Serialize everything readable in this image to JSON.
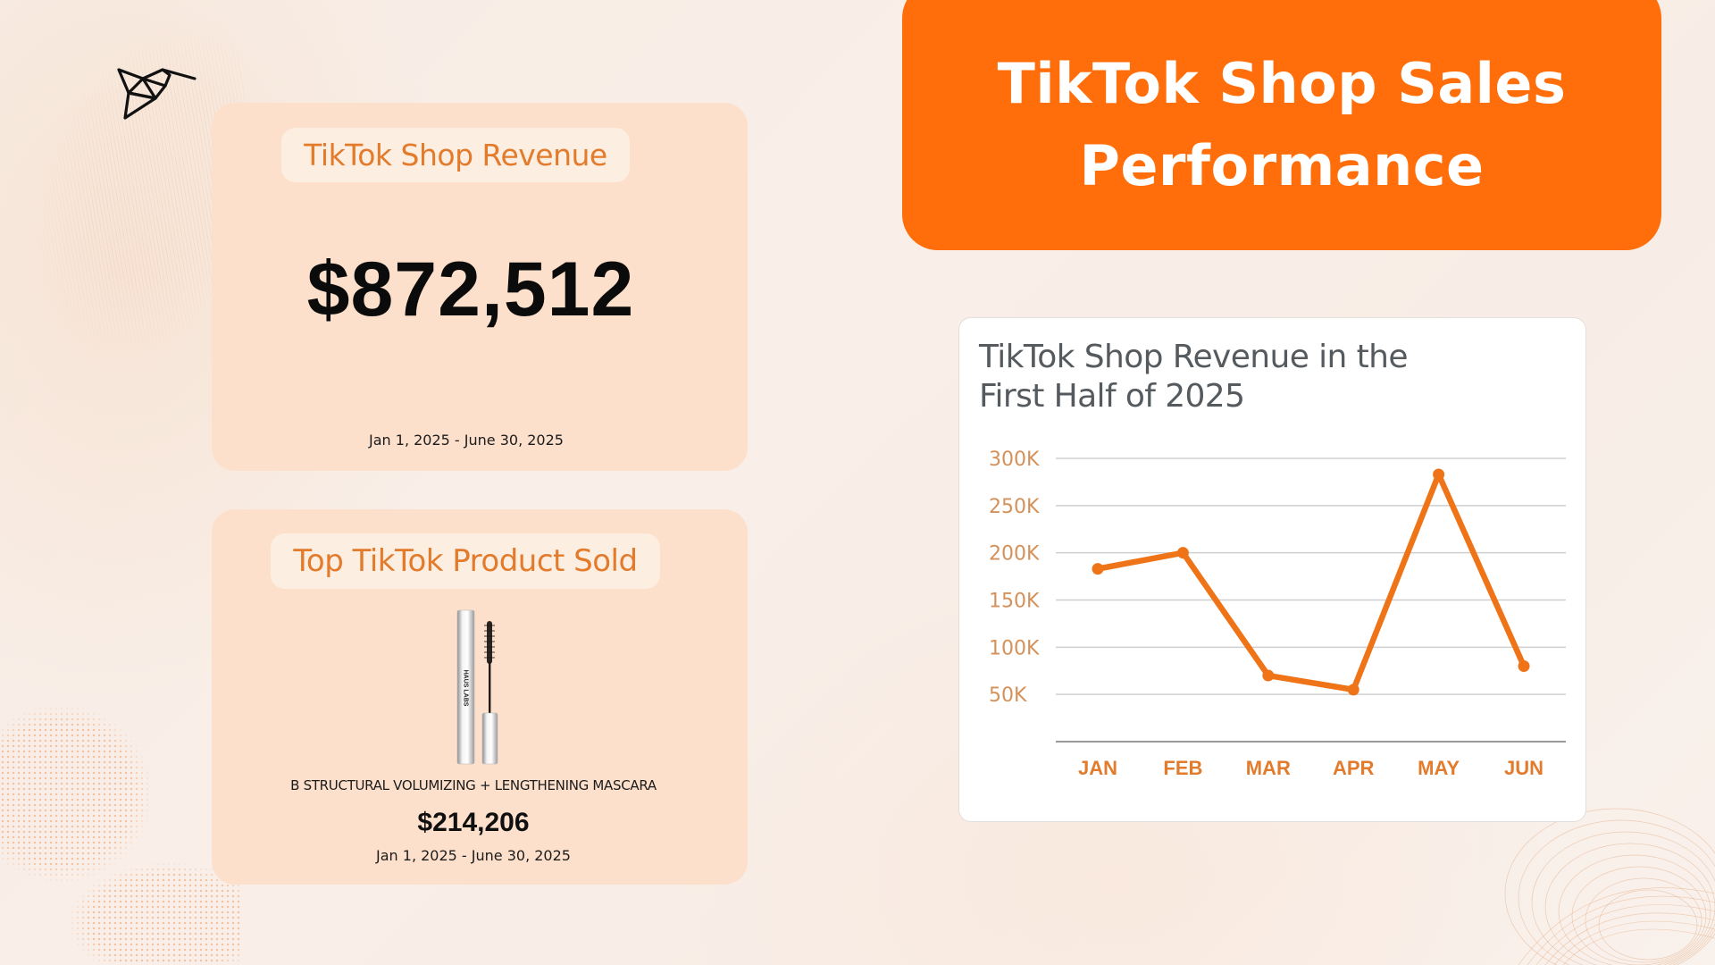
{
  "header": {
    "title_line1": "TikTok Shop Sales",
    "title_line2": "Performance"
  },
  "revenue_card": {
    "label": "TikTok Shop Revenue",
    "value": "$872,512",
    "date_range": "Jan 1, 2025 - June 30, 2025"
  },
  "product_card": {
    "label": "Top TikTok Product Sold",
    "brand_on_image": "HAUS LABS",
    "product_name": "B STRUCTURAL VOLUMIZING + LENGTHENING MASCARA",
    "value": "$214,206",
    "date_range": "Jan 1, 2025 - June 30, 2025"
  },
  "colors": {
    "accent": "#ff6e0a",
    "card_bg": "#fde0cc",
    "pill_bg": "#fdeee2",
    "label_text": "#e27b2c",
    "line": "#ef7418",
    "ytick": "#d4915a",
    "grid": "#cfcfcf"
  },
  "chart_data": {
    "type": "line",
    "title": "TikTok Shop Revenue in the First Half of 2025",
    "title_lines": [
      "TikTok Shop Revenue in the",
      "First Half of 2025"
    ],
    "categories": [
      "JAN",
      "FEB",
      "MAR",
      "APR",
      "MAY",
      "JUN"
    ],
    "series": [
      {
        "name": "Revenue",
        "values": [
          183000,
          200000,
          70000,
          55000,
          283000,
          80000
        ]
      }
    ],
    "yticks": [
      {
        "value": 50000,
        "label": "50K"
      },
      {
        "value": 100000,
        "label": "100K"
      },
      {
        "value": 150000,
        "label": "150K"
      },
      {
        "value": 200000,
        "label": "200K"
      },
      {
        "value": 250000,
        "label": "250K"
      },
      {
        "value": 300000,
        "label": "300K"
      }
    ],
    "xlabel": "",
    "ylabel": "",
    "ylim": [
      0,
      300000
    ],
    "grid": true,
    "legend": "none"
  }
}
